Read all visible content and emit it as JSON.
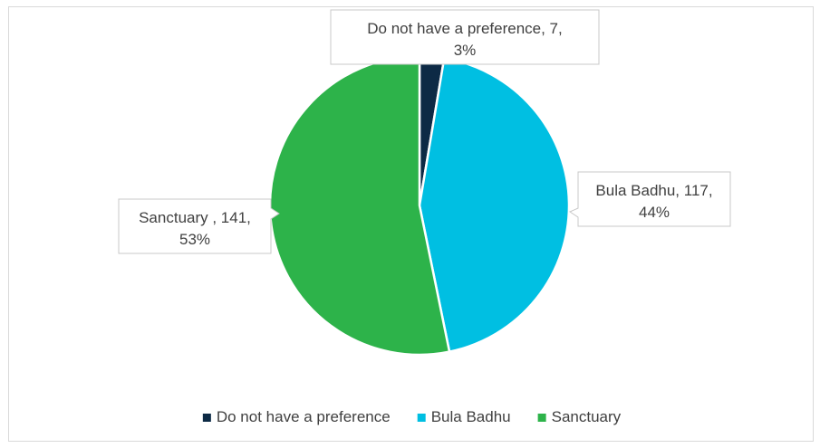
{
  "chart_data": {
    "type": "pie",
    "categories": [
      "Do not have a preference",
      "Bula Badhu",
      "Sanctuary"
    ],
    "values": [
      7,
      117,
      141
    ],
    "percentages": [
      "3%",
      "44%",
      "53%"
    ],
    "colors": [
      "#0d2a45",
      "#00bfe2",
      "#2db34a"
    ],
    "data_labels": [
      {
        "line1": "Do not have a preference, 7,",
        "line2": "3%"
      },
      {
        "line1": "Bula Badhu, 117,",
        "line2": "44%"
      },
      {
        "line1": "Sanctuary , 141,",
        "line2": "53%"
      }
    ],
    "legend": {
      "position": "bottom",
      "entries": [
        "Do not have a preference",
        "Bula Badhu",
        "Sanctuary"
      ]
    }
  }
}
